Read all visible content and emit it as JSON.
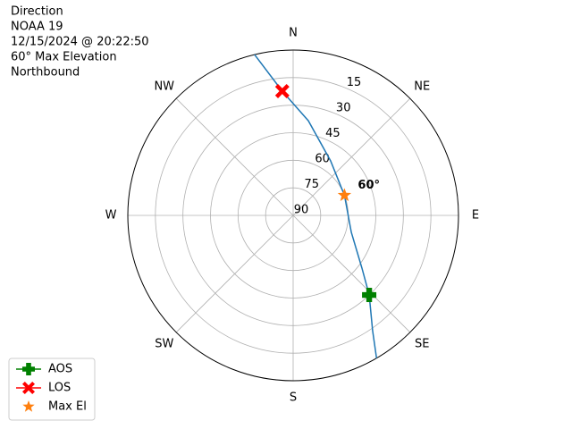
{
  "chart_data": {
    "type": "polar",
    "title": [
      "Direction",
      "NOAA 19",
      "12/15/2024 @ 20:22:50",
      "60° Max Elevation",
      "Northbound"
    ],
    "theta_zero": "N",
    "theta_direction": "clockwise",
    "thetaticks": [
      {
        "value": 0,
        "label": "N"
      },
      {
        "value": 45,
        "label": "NE"
      },
      {
        "value": 90,
        "label": "E"
      },
      {
        "value": 135,
        "label": "SE"
      },
      {
        "value": 180,
        "label": "S"
      },
      {
        "value": 225,
        "label": "SW"
      },
      {
        "value": 270,
        "label": "W"
      },
      {
        "value": 315,
        "label": "NW"
      }
    ],
    "rlim": [
      90,
      0
    ],
    "rticks": [
      15,
      30,
      45,
      60,
      75,
      90
    ],
    "grid": true,
    "track": {
      "color": "#1f77b4",
      "theta": [
        346.5,
        355,
        9.1,
        34.5,
        68.6,
        106.3,
        127.5,
        136.3,
        145.4,
        149.7
      ],
      "r": [
        0,
        22.1,
        37.8,
        54,
        60,
        57,
        42.8,
        30.1,
        13.8,
        0
      ]
    },
    "series": [
      {
        "name": "AOS",
        "color": "#008000",
        "marker": "plus",
        "linestyle": "solid",
        "theta": [
          136.3
        ],
        "r": [
          30.1
        ]
      },
      {
        "name": "LOS",
        "color": "#ff0000",
        "marker": "x",
        "linestyle": "solid",
        "theta": [
          355
        ],
        "r": [
          22.1
        ]
      },
      {
        "name": "Max El",
        "color": "#ff7f0e",
        "marker": "star",
        "linestyle": "none",
        "theta": [
          68.6
        ],
        "r": [
          60
        ],
        "value_labels": [
          "60°"
        ]
      }
    ],
    "legend": "lower left"
  }
}
